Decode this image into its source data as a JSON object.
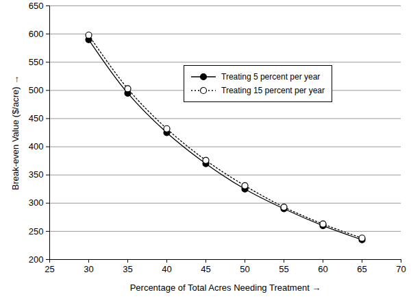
{
  "chart_data": {
    "type": "line",
    "xlabel": "Percentage of Total Acres Needing Treatment",
    "ylabel": "Break-even Value ($/acre)",
    "x": [
      30,
      35,
      40,
      45,
      50,
      55,
      60,
      65
    ],
    "series": [
      {
        "name": "Treating 5 percent per year",
        "color": "#000000",
        "marker": "filled",
        "line_style": "solid",
        "values": [
          590,
          495,
          425,
          370,
          325,
          290,
          260,
          235
        ]
      },
      {
        "name": "Treating 15 percent per year",
        "color": "#000000",
        "marker": "open",
        "line_style": "dotted",
        "values": [
          598,
          503,
          432,
          376,
          331,
          293,
          263,
          238
        ]
      }
    ],
    "xlim": [
      25,
      70
    ],
    "xticks": [
      25,
      30,
      35,
      40,
      45,
      50,
      55,
      60,
      65,
      70
    ],
    "ylim": [
      200,
      650
    ],
    "yticks": [
      200,
      250,
      300,
      350,
      400,
      450,
      500,
      550,
      600,
      650
    ],
    "grid": true,
    "legend": "upper right"
  }
}
